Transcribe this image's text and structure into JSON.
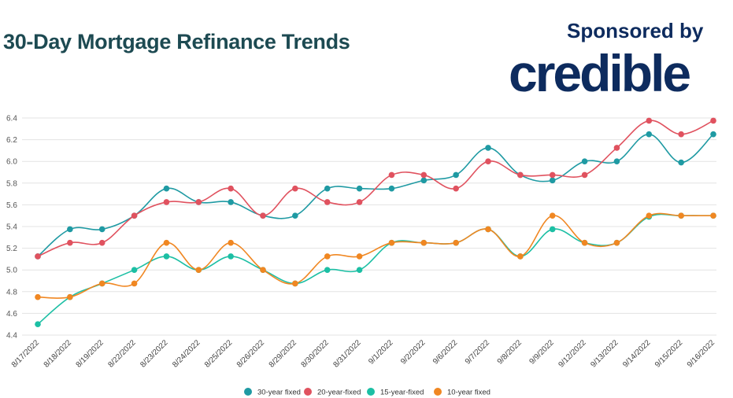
{
  "header": {
    "title": "30-Day Mortgage Refinance Trends",
    "sponsor_label": "Sponsored by",
    "brand": "credible"
  },
  "colors": {
    "title": "#1d4a52",
    "brand": "#0d2b5e",
    "grid": "#e3e3e3"
  },
  "chart_data": {
    "type": "line",
    "title": "30-Day Mortgage Refinance Trends",
    "xlabel": "",
    "ylabel": "",
    "ylim": [
      4.4,
      6.4
    ],
    "yticks": [
      "4.4",
      "4.6",
      "4.8",
      "5.0",
      "5.2",
      "5.4",
      "5.6",
      "5.8",
      "6.0",
      "6.2",
      "6.4"
    ],
    "grid": true,
    "legend_position": "bottom",
    "categories": [
      "8/17/2022",
      "8/18/2022",
      "8/19/2022",
      "8/22/2022",
      "8/23/2022",
      "8/24/2022",
      "8/25/2022",
      "8/26/2022",
      "8/29/2022",
      "8/30/2022",
      "8/31/2022",
      "9/1/2022",
      "9/2/2022",
      "9/6/2022",
      "9/7/2022",
      "9/8/2022",
      "9/9/2022",
      "9/12/2022",
      "9/13/2022",
      "9/14/2022",
      "9/15/2022",
      "9/16/2022"
    ],
    "series": [
      {
        "name": "30-year fixed",
        "color": "#1f9aa3",
        "values": [
          5.125,
          5.375,
          5.375,
          5.5,
          5.75,
          5.625,
          5.625,
          5.5,
          5.5,
          5.75,
          5.75,
          5.75,
          5.825,
          5.875,
          6.125,
          5.875,
          5.825,
          6.0,
          6.0,
          6.25,
          5.99,
          6.25
        ]
      },
      {
        "name": "20-year-fixed",
        "color": "#e0525f",
        "values": [
          5.125,
          5.25,
          5.25,
          5.5,
          5.625,
          5.625,
          5.75,
          5.5,
          5.75,
          5.625,
          5.625,
          5.875,
          5.875,
          5.75,
          6.0,
          5.875,
          5.875,
          5.875,
          6.125,
          6.375,
          6.25,
          6.375
        ]
      },
      {
        "name": "15-year-fixed",
        "color": "#1cbfa4",
        "values": [
          4.5,
          4.75,
          4.875,
          5.0,
          5.125,
          5.0,
          5.125,
          5.0,
          4.875,
          5.0,
          5.0,
          5.25,
          5.25,
          5.25,
          5.375,
          5.125,
          5.375,
          5.25,
          5.25,
          5.49,
          5.5,
          5.5
        ]
      },
      {
        "name": "10-year fixed",
        "color": "#f08722",
        "values": [
          4.75,
          4.75,
          4.875,
          4.875,
          5.25,
          5.0,
          5.25,
          5.0,
          4.875,
          5.125,
          5.125,
          5.25,
          5.25,
          5.25,
          5.375,
          5.125,
          5.5,
          5.25,
          5.25,
          5.5,
          5.5,
          5.5
        ]
      }
    ]
  }
}
